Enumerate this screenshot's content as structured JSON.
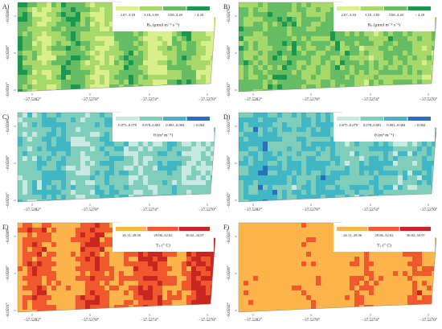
{
  "panels": [
    {
      "label": "A)",
      "legend_title": "Rₛ (μmol m⁻² s⁻¹)",
      "legend": [
        {
          "label": "2.67–3.18",
          "color": "#d9ef8b"
        },
        {
          "label": "3.18–3.69",
          "color": "#a6d96a"
        },
        {
          "label": "3.69–4.20",
          "color": "#66bd63"
        },
        {
          "label": "> 4.20",
          "color": "#1a9850"
        }
      ],
      "x_ticks": [
        "−37.5282°",
        "−37.5278°",
        "−37.5274°",
        "−37.5270°"
      ],
      "y_ticks": [
        "−8.0586°",
        "−8.0589°",
        "−8.0591°"
      ]
    },
    {
      "label": "B)",
      "legend_title": "Rₛ (μmol m⁻² s⁻¹)",
      "legend": [
        {
          "label": "2.67–3.18",
          "color": "#d9ef8b"
        },
        {
          "label": "3.18–3.69",
          "color": "#a6d96a"
        },
        {
          "label": "3.69–4.20",
          "color": "#66bd63"
        },
        {
          "label": "> 4.20",
          "color": "#1a9850"
        }
      ],
      "x_ticks": [
        "−37.5282°",
        "−37.5278°",
        "−37.5274°",
        "−37.5270°"
      ],
      "y_ticks": [
        "−8.0587°",
        "−8.0589°",
        "−8.0592°"
      ]
    },
    {
      "label": "C)",
      "legend_title": "θ (m³ m⁻³)",
      "legend": [
        {
          "label": "0.075–0.078",
          "color": "#c7e9e0"
        },
        {
          "label": "0.078–0.081",
          "color": "#7fcdbb"
        },
        {
          "label": "0.081–0.084",
          "color": "#41b6c4"
        },
        {
          "label": "> 0.084",
          "color": "#2c6fb8"
        }
      ],
      "x_ticks": [
        "−37.5282°",
        "−37.5278°",
        "−37.5274°",
        "−37.5270°"
      ],
      "y_ticks": [
        "−8.0586°",
        "−8.0589°",
        "−8.0591°"
      ]
    },
    {
      "label": "D)",
      "legend_title": "θ (m³ m⁻³)",
      "legend": [
        {
          "label": "0.075–0.078",
          "color": "#c7e9e0"
        },
        {
          "label": "0.078–0.081",
          "color": "#7fcdbb"
        },
        {
          "label": "0.081–0.084",
          "color": "#41b6c4"
        },
        {
          "label": "> 0.084",
          "color": "#2c6fb8"
        }
      ],
      "x_ticks": [
        "−37.5282°",
        "−37.5278°",
        "−37.5274°",
        "−37.5270°"
      ],
      "y_ticks": [
        "−8.0587°",
        "−8.0589°",
        "−8.0592°"
      ]
    },
    {
      "label": "E)",
      "legend_title": "Tₛ (° C)",
      "legend": [
        {
          "label": "26.11–29.06",
          "color": "#fdb44b"
        },
        {
          "label": "29.06–32.02",
          "color": "#f0592d"
        },
        {
          "label": "30.02–34.97",
          "color": "#c8261e"
        }
      ],
      "x_ticks": [
        "−37.5282°",
        "−37.5278°",
        "−37.5274°",
        "−37.5270°"
      ],
      "y_ticks": [
        "−8.0586°",
        "−8.0589°",
        "−8.0591°"
      ]
    },
    {
      "label": "F)",
      "legend_title": "Tₛ (° C)",
      "legend": [
        {
          "label": "26.11–29.06",
          "color": "#fdb44b"
        },
        {
          "label": "29.06–32.02",
          "color": "#f0592d"
        },
        {
          "label": "30.02–34.97",
          "color": "#c8261e"
        }
      ],
      "x_ticks": [
        "−37.5282°",
        "−37.5278°",
        "−37.5274°",
        "−37.5270°"
      ],
      "y_ticks": [
        "−8.0587°",
        "−8.0589°",
        "−8.0592°"
      ]
    }
  ]
}
